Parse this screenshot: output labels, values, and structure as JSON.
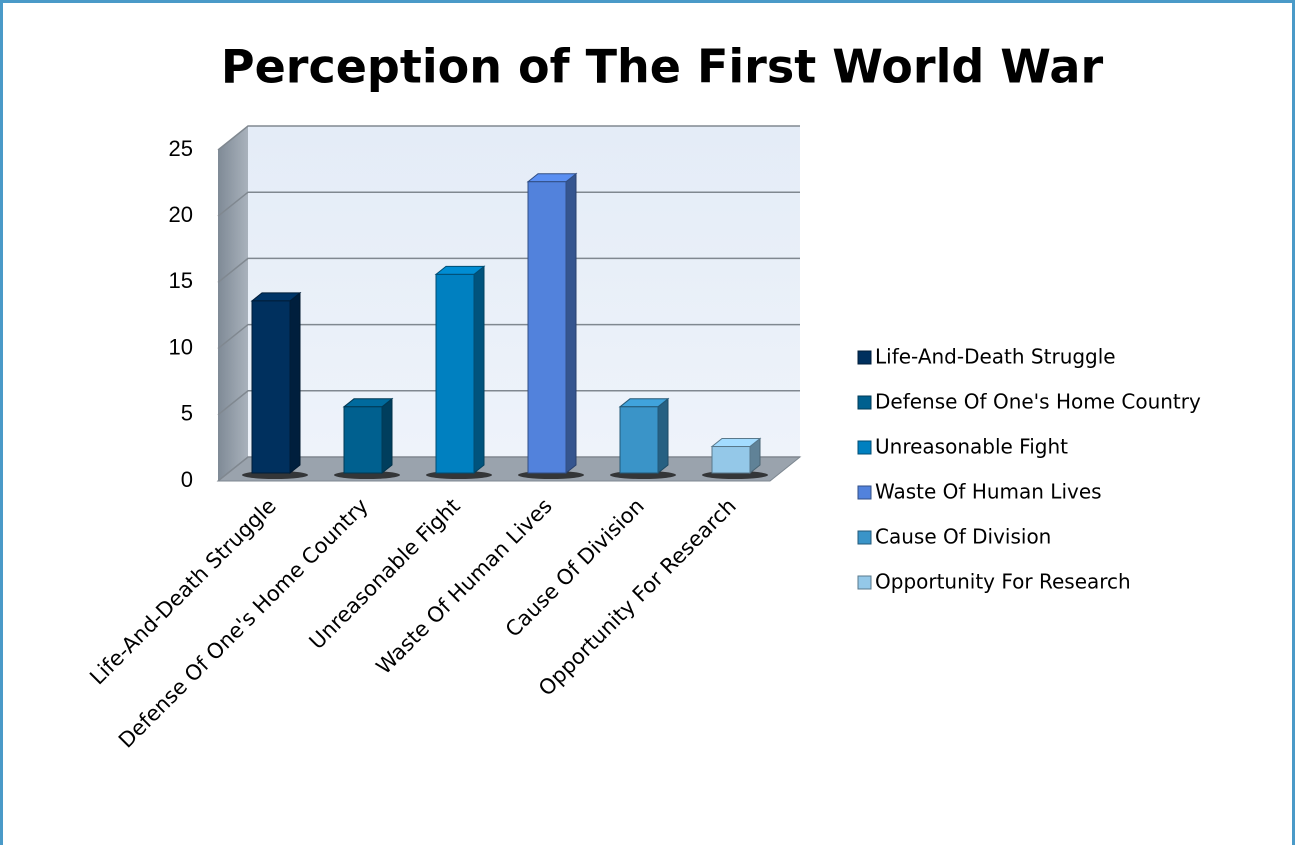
{
  "chart_data": {
    "type": "bar3d",
    "title": "Perception of The First World War",
    "categories": [
      "Life-And-Death Struggle",
      "Defense Of One's Home Country",
      "Unreasonable Fight",
      "Waste Of Human Lives",
      "Cause Of Division",
      "Opportunity For Research"
    ],
    "values": [
      13,
      5,
      15,
      22,
      5,
      2
    ],
    "colors": [
      "#00305e",
      "#00608f",
      "#0080c0",
      "#5282dc",
      "#3a94c8",
      "#94c8e8"
    ],
    "ylim": [
      0,
      25
    ],
    "yticks": [
      0,
      5,
      10,
      15,
      20,
      25
    ],
    "grid": true,
    "legend": "right"
  }
}
